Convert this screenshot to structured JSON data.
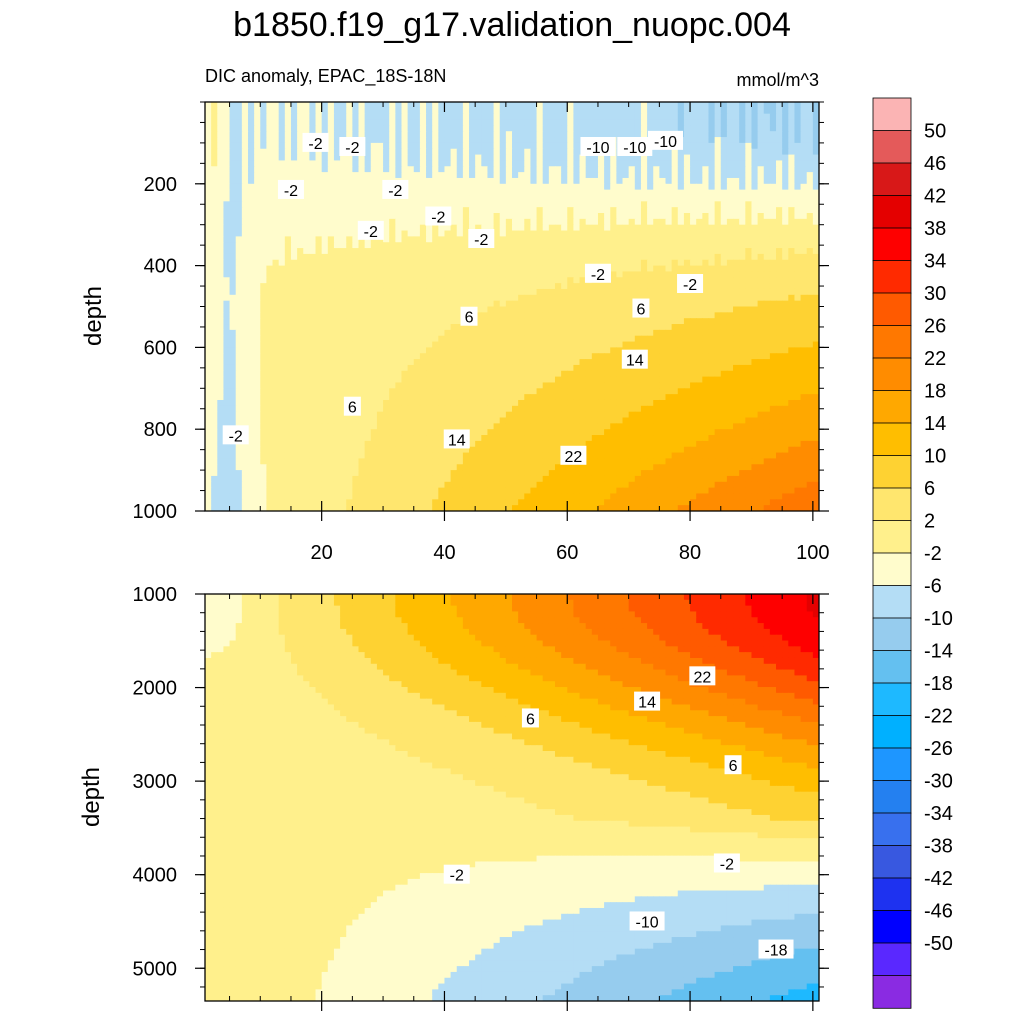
{
  "title": "b1850.f19_g17.validation_nuopc.004",
  "chart_data": [
    {
      "type": "contour",
      "panel": "upper",
      "left_string": "DIC anomaly, EPAC_18S-18N",
      "right_string": "mmol/m^3",
      "xlabel": "",
      "ylabel": "depth",
      "xlim": [
        1,
        101
      ],
      "ylim": [
        1000,
        0
      ],
      "x_ticks": [
        20,
        40,
        60,
        80,
        100
      ],
      "y_ticks": [
        200,
        400,
        600,
        800,
        1000
      ],
      "contour_labels": [
        {
          "text": "-2",
          "x": 19,
          "y": 100
        },
        {
          "text": "-2",
          "x": 25,
          "y": 110
        },
        {
          "text": "-10",
          "x": 65,
          "y": 110
        },
        {
          "text": "-10",
          "x": 71,
          "y": 110
        },
        {
          "text": "-10",
          "x": 76,
          "y": 95
        },
        {
          "text": "-2",
          "x": 15,
          "y": 215
        },
        {
          "text": "-2",
          "x": 32,
          "y": 215
        },
        {
          "text": "-2",
          "x": 28,
          "y": 315
        },
        {
          "text": "-2",
          "x": 39,
          "y": 280
        },
        {
          "text": "-2",
          "x": 46,
          "y": 335
        },
        {
          "text": "-2",
          "x": 65,
          "y": 420
        },
        {
          "text": "-2",
          "x": 80,
          "y": 445
        },
        {
          "text": "6",
          "x": 44,
          "y": 525
        },
        {
          "text": "6",
          "x": 72,
          "y": 505
        },
        {
          "text": "14",
          "x": 71,
          "y": 630
        },
        {
          "text": "6",
          "x": 25,
          "y": 745
        },
        {
          "text": "-2",
          "x": 6,
          "y": 815
        },
        {
          "text": "14",
          "x": 42,
          "y": 825
        },
        {
          "text": "22",
          "x": 61,
          "y": 865
        }
      ]
    },
    {
      "type": "contour",
      "panel": "lower",
      "xlabel": "",
      "ylabel": "depth",
      "xlim": [
        1,
        101
      ],
      "ylim": [
        5350,
        1000
      ],
      "x_ticks": [
        20,
        40,
        60,
        80,
        100
      ],
      "y_ticks": [
        1000,
        2000,
        3000,
        4000,
        5000
      ],
      "contour_labels": [
        {
          "text": "22",
          "x": 82,
          "y": 1880
        },
        {
          "text": "14",
          "x": 73,
          "y": 2150
        },
        {
          "text": "6",
          "x": 54,
          "y": 2330
        },
        {
          "text": "6",
          "x": 87,
          "y": 2830
        },
        {
          "text": "-2",
          "x": 42,
          "y": 4000
        },
        {
          "text": "-2",
          "x": 86,
          "y": 3880
        },
        {
          "text": "-10",
          "x": 73,
          "y": 4500
        },
        {
          "text": "-18",
          "x": 94,
          "y": 4800
        }
      ]
    }
  ],
  "colorbar": {
    "labels": [
      "50",
      "46",
      "42",
      "38",
      "34",
      "30",
      "26",
      "22",
      "18",
      "14",
      "10",
      "6",
      "2",
      "-2",
      "-6",
      "-10",
      "-14",
      "-18",
      "-22",
      "-26",
      "-30",
      "-34",
      "-38",
      "-42",
      "-46",
      "-50"
    ],
    "colors": [
      "#fbb4b4",
      "#e45a5a",
      "#d81818",
      "#e40000",
      "#fe0000",
      "#ff2a00",
      "#ff5a00",
      "#ff7800",
      "#ff8c00",
      "#ffa800",
      "#ffbe00",
      "#fed232",
      "#ffe66e",
      "#fff08c",
      "#fffccc",
      "#b4ddf5",
      "#96ccee",
      "#64c0f0",
      "#1eb9ff",
      "#00b0ff",
      "#1e96ff",
      "#2480f0",
      "#3870ee",
      "#3858e0",
      "#1e32f0",
      "#0000ff",
      "#5a28ff",
      "#8a2be2"
    ]
  }
}
